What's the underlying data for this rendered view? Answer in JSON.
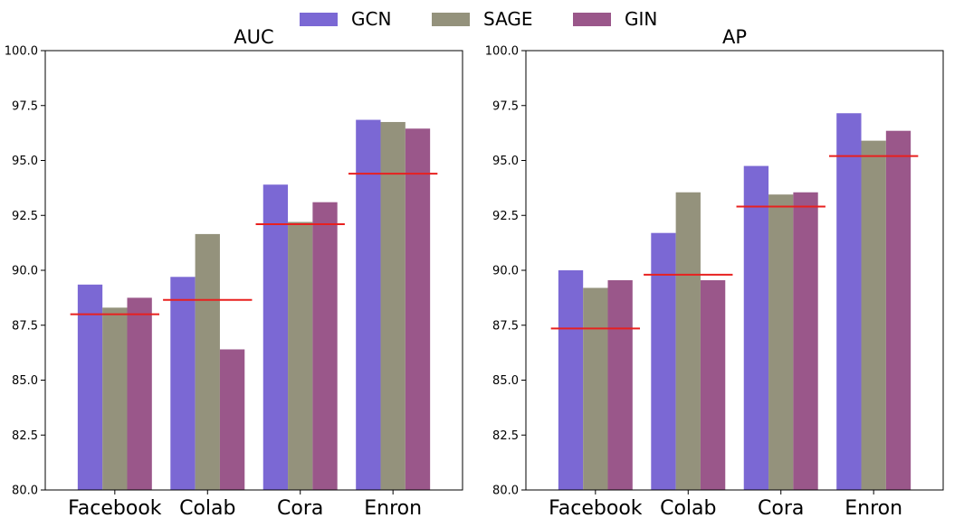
{
  "chart_data": [
    {
      "type": "bar",
      "title": "AUC",
      "categories": [
        "Facebook",
        "Colab",
        "Cora",
        "Enron"
      ],
      "series": [
        {
          "name": "GCN",
          "values": [
            89.35,
            89.7,
            93.9,
            96.85
          ]
        },
        {
          "name": "SAGE",
          "values": [
            88.3,
            91.65,
            92.2,
            96.75
          ]
        },
        {
          "name": "GIN",
          "values": [
            88.75,
            86.4,
            93.1,
            96.45
          ]
        }
      ],
      "reference_lines": [
        88.0,
        88.65,
        92.1,
        94.4
      ],
      "ylim": [
        80.0,
        100.0
      ],
      "yticks": [
        "80.0",
        "82.5",
        "85.0",
        "87.5",
        "90.0",
        "92.5",
        "95.0",
        "97.5",
        "100.0"
      ],
      "xlabel": "",
      "ylabel": ""
    },
    {
      "type": "bar",
      "title": "AP",
      "categories": [
        "Facebook",
        "Colab",
        "Cora",
        "Enron"
      ],
      "series": [
        {
          "name": "GCN",
          "values": [
            90.0,
            91.7,
            94.75,
            97.15
          ]
        },
        {
          "name": "SAGE",
          "values": [
            89.2,
            93.55,
            93.45,
            95.9
          ]
        },
        {
          "name": "GIN",
          "values": [
            89.55,
            89.55,
            93.55,
            96.35
          ]
        }
      ],
      "reference_lines": [
        87.35,
        89.8,
        92.9,
        95.2
      ],
      "ylim": [
        80.0,
        100.0
      ],
      "yticks": [
        "80.0",
        "82.5",
        "85.0",
        "87.5",
        "90.0",
        "92.5",
        "95.0",
        "97.5",
        "100.0"
      ],
      "xlabel": "",
      "ylabel": ""
    }
  ],
  "legend": {
    "position": "top-center",
    "items": [
      {
        "label": "GCN",
        "color": "#7b68d4"
      },
      {
        "label": "SAGE",
        "color": "#94927c"
      },
      {
        "label": "GIN",
        "color": "#9a578a"
      }
    ]
  },
  "colors": {
    "GCN": "#7b68d4",
    "SAGE": "#94927c",
    "GIN": "#9a578a",
    "reference_line": "#e8201f"
  }
}
